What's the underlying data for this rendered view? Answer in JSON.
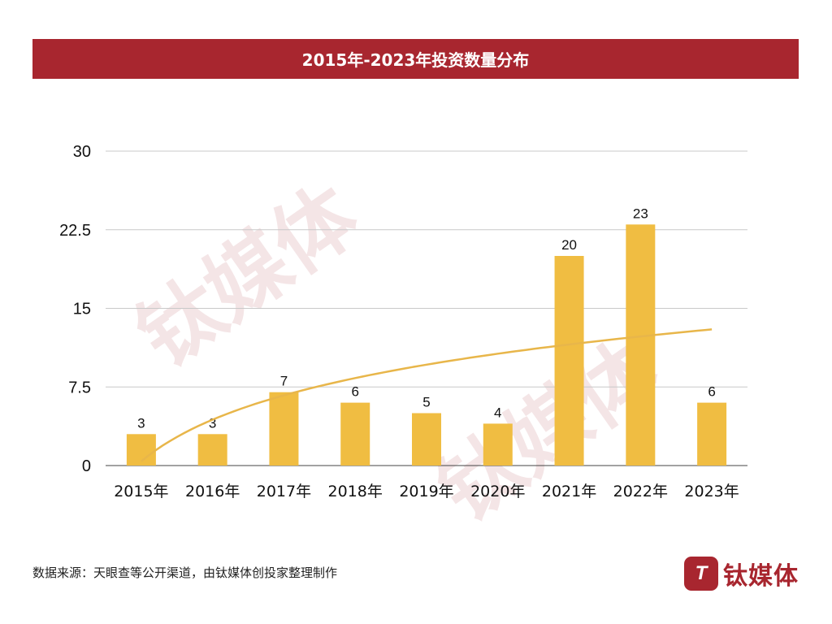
{
  "chart_data": {
    "type": "bar",
    "title": "2015年-2023年投资数量分布",
    "categories": [
      "2015年",
      "2016年",
      "2017年",
      "2018年",
      "2019年",
      "2020年",
      "2021年",
      "2022年",
      "2023年"
    ],
    "values": [
      3,
      3,
      7,
      6,
      5,
      4,
      20,
      23,
      6
    ],
    "data_labels": [
      "3",
      "3",
      "7",
      "6",
      "5",
      "4",
      "20",
      "23",
      "6"
    ],
    "ylim": [
      0,
      30
    ],
    "yticks": [
      "0",
      "7.5",
      "15",
      "22.5",
      "30"
    ],
    "yticks_values": [
      0,
      7.5,
      15,
      22.5,
      30
    ],
    "grid": true,
    "trendline": "logarithmic",
    "colors": {
      "bar": "#f0bd42",
      "trend": "#e8b64a",
      "title_bg": "#a8262f",
      "grid": "#c8c8c8"
    }
  },
  "footer": {
    "source": "数据来源：天眼查等公开渠道，由钛媒体创投家整理制作",
    "logo_text": "钛媒体"
  }
}
